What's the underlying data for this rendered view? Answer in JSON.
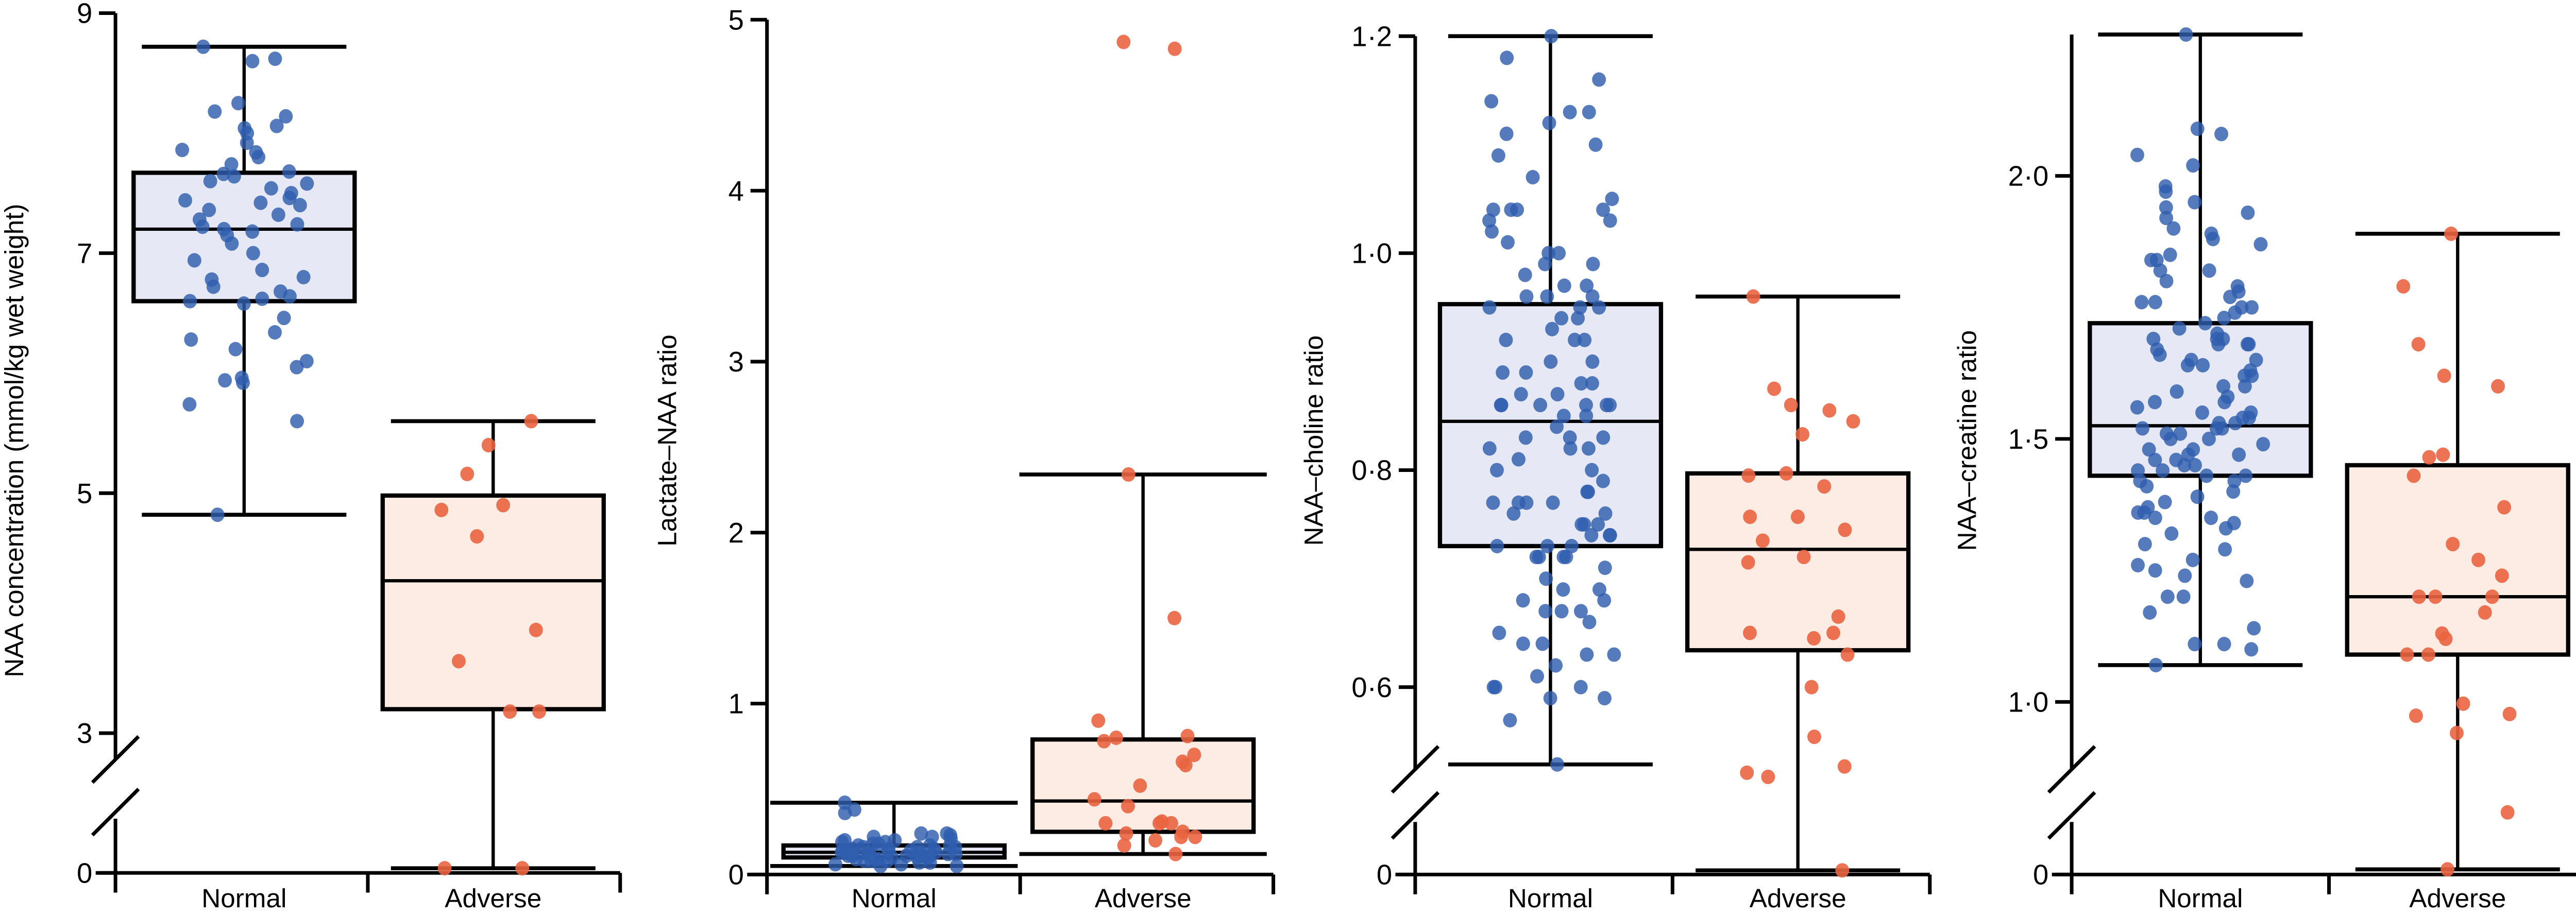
{
  "colors": {
    "normal_dot": "#2f5eae",
    "normal_fill": "#e6e8f5",
    "adverse_dot": "#ea6440",
    "adverse_fill": "#fdece4",
    "line": "#000000"
  },
  "chart_data": [
    {
      "type": "box",
      "ylabel": "NAA concentration (mmol/kg wet weight)",
      "categories": [
        "Normal",
        "Adverse"
      ],
      "yticks": [
        {
          "value": 0,
          "label": "0"
        },
        {
          "value": 3,
          "label": "3"
        },
        {
          "value": 5,
          "label": "5"
        },
        {
          "value": 7,
          "label": "7"
        },
        {
          "value": 9,
          "label": "9"
        }
      ],
      "axis_break": {
        "between": [
          0,
          3
        ]
      },
      "ylim": [
        0,
        9
      ],
      "groups": [
        {
          "name": "Normal",
          "whisker_low": 4.82,
          "q1": 6.6,
          "median": 7.2,
          "q3": 7.67,
          "whisker_high": 8.72,
          "points": [
            8.72,
            8.62,
            8.6,
            8.25,
            8.18,
            8.14,
            8.06,
            8.04,
            8.0,
            7.92,
            7.86,
            7.84,
            7.8,
            7.74,
            7.68,
            7.66,
            7.64,
            7.6,
            7.58,
            7.54,
            7.5,
            7.46,
            7.44,
            7.42,
            7.4,
            7.36,
            7.32,
            7.28,
            7.24,
            7.22,
            7.2,
            7.18,
            7.15,
            7.08,
            7.0,
            6.94,
            6.86,
            6.8,
            6.78,
            6.72,
            6.68,
            6.64,
            6.62,
            6.6,
            6.58,
            6.46,
            6.34,
            6.28,
            6.2,
            6.1,
            6.05,
            5.96,
            5.94,
            5.92,
            5.74,
            5.6,
            4.82
          ]
        },
        {
          "name": "Adverse",
          "whisker_low": 0.1,
          "q1": 3.2,
          "median": 4.27,
          "q3": 4.98,
          "whisker_high": 5.6,
          "points": [
            5.6,
            5.4,
            5.16,
            4.9,
            4.86,
            4.64,
            3.86,
            3.6,
            3.18,
            3.18,
            0.1,
            0.1
          ]
        }
      ]
    },
    {
      "type": "box",
      "ylabel": "Lactate–NAA ratio",
      "categories": [
        "Normal",
        "Adverse"
      ],
      "yticks": [
        {
          "value": 0,
          "label": "0"
        },
        {
          "value": 1,
          "label": "1"
        },
        {
          "value": 2,
          "label": "2"
        },
        {
          "value": 3,
          "label": "3"
        },
        {
          "value": 4,
          "label": "4"
        },
        {
          "value": 5,
          "label": "5"
        }
      ],
      "ylim": [
        0,
        5
      ],
      "groups": [
        {
          "name": "Normal",
          "whisker_low": 0.05,
          "q1": 0.1,
          "median": 0.13,
          "q3": 0.17,
          "whisker_high": 0.42,
          "points": [
            0.42,
            0.38,
            0.36,
            0.24,
            0.24,
            0.23,
            0.22,
            0.22,
            0.21,
            0.2,
            0.2,
            0.19,
            0.19,
            0.18,
            0.18,
            0.17,
            0.17,
            0.17,
            0.16,
            0.16,
            0.16,
            0.15,
            0.15,
            0.15,
            0.14,
            0.14,
            0.14,
            0.14,
            0.13,
            0.13,
            0.13,
            0.13,
            0.12,
            0.12,
            0.12,
            0.12,
            0.11,
            0.11,
            0.11,
            0.11,
            0.1,
            0.1,
            0.1,
            0.1,
            0.09,
            0.09,
            0.09,
            0.08,
            0.08,
            0.08,
            0.07,
            0.07,
            0.06,
            0.06,
            0.05,
            0.05
          ]
        },
        {
          "name": "Adverse",
          "whisker_low": 0.12,
          "q1": 0.25,
          "median": 0.43,
          "q3": 0.79,
          "whisker_high": 2.34,
          "points": [
            4.87,
            4.83,
            2.34,
            1.5,
            0.9,
            0.81,
            0.8,
            0.78,
            0.7,
            0.66,
            0.64,
            0.52,
            0.44,
            0.4,
            0.31,
            0.3,
            0.3,
            0.3,
            0.25,
            0.24,
            0.22,
            0.22,
            0.2,
            0.17,
            0.12
          ]
        }
      ]
    },
    {
      "type": "box",
      "ylabel": "NAA–choline ratio",
      "categories": [
        "Normal",
        "Adverse"
      ],
      "yticks": [
        {
          "value": 0,
          "label": "0"
        },
        {
          "value": 0.6,
          "label": "0·6"
        },
        {
          "value": 0.8,
          "label": "0·8"
        },
        {
          "value": 1.0,
          "label": "1·0"
        },
        {
          "value": 1.2,
          "label": "1·2"
        }
      ],
      "axis_break": {
        "between": [
          0,
          0.6
        ]
      },
      "ylim": [
        0,
        1.2
      ],
      "groups": [
        {
          "name": "Normal",
          "whisker_low": 0.53,
          "q1": 0.73,
          "median": 0.845,
          "q3": 0.953,
          "whisker_high": 1.2,
          "points": [
            1.2,
            1.18,
            1.16,
            1.14,
            1.13,
            1.13,
            1.12,
            1.11,
            1.1,
            1.09,
            1.07,
            1.05,
            1.04,
            1.04,
            1.04,
            1.04,
            1.03,
            1.03,
            1.02,
            1.01,
            1.0,
            1.0,
            0.99,
            0.99,
            0.98,
            0.97,
            0.97,
            0.96,
            0.96,
            0.96,
            0.95,
            0.95,
            0.95,
            0.94,
            0.94,
            0.93,
            0.92,
            0.92,
            0.92,
            0.9,
            0.9,
            0.89,
            0.89,
            0.88,
            0.88,
            0.87,
            0.87,
            0.86,
            0.86,
            0.86,
            0.86,
            0.86,
            0.86,
            0.85,
            0.85,
            0.84,
            0.83,
            0.83,
            0.83,
            0.82,
            0.82,
            0.82,
            0.81,
            0.8,
            0.8,
            0.79,
            0.78,
            0.78,
            0.77,
            0.77,
            0.77,
            0.77,
            0.76,
            0.76,
            0.75,
            0.75,
            0.75,
            0.74,
            0.74,
            0.74,
            0.73,
            0.73,
            0.73,
            0.72,
            0.72,
            0.72,
            0.72,
            0.71,
            0.7,
            0.69,
            0.69,
            0.68,
            0.68,
            0.67,
            0.67,
            0.67,
            0.66,
            0.65,
            0.64,
            0.64,
            0.63,
            0.63,
            0.62,
            0.61,
            0.6,
            0.6,
            0.6,
            0.59,
            0.59,
            0.57,
            0.53
          ]
        },
        {
          "name": "Adverse",
          "whisker_low": 0.02,
          "q1": 0.634,
          "median": 0.727,
          "q3": 0.797,
          "whisker_high": 0.96,
          "points": [
            0.96,
            0.875,
            0.86,
            0.855,
            0.845,
            0.833,
            0.797,
            0.795,
            0.785,
            0.757,
            0.757,
            0.745,
            0.735,
            0.72,
            0.715,
            0.665,
            0.65,
            0.65,
            0.645,
            0.63,
            0.6,
            0.555,
            0.52,
            0.49,
            0.47,
            0.02
          ]
        }
      ]
    },
    {
      "type": "box",
      "ylabel": "NAA–creatine ratio",
      "categories": [
        "Normal",
        "Adverse"
      ],
      "yticks": [
        {
          "value": 0,
          "label": "0"
        },
        {
          "value": 1.0,
          "label": "1·0"
        },
        {
          "value": 1.5,
          "label": "1·5"
        },
        {
          "value": 2.0,
          "label": "2·0"
        }
      ],
      "axis_break": {
        "between": [
          0,
          1.0
        ]
      },
      "ylim": [
        0,
        2.27
      ],
      "groups": [
        {
          "name": "Normal",
          "whisker_low": 1.07,
          "q1": 1.43,
          "median": 1.525,
          "q3": 1.72,
          "whisker_high": 2.27,
          "points": [
            2.27,
            2.09,
            2.08,
            2.04,
            2.02,
            1.98,
            1.97,
            1.95,
            1.94,
            1.93,
            1.92,
            1.9,
            1.89,
            1.88,
            1.87,
            1.85,
            1.84,
            1.84,
            1.82,
            1.82,
            1.8,
            1.79,
            1.78,
            1.77,
            1.76,
            1.76,
            1.75,
            1.75,
            1.74,
            1.73,
            1.72,
            1.71,
            1.7,
            1.69,
            1.69,
            1.69,
            1.68,
            1.68,
            1.68,
            1.67,
            1.66,
            1.65,
            1.65,
            1.64,
            1.64,
            1.63,
            1.62,
            1.62,
            1.6,
            1.6,
            1.59,
            1.58,
            1.57,
            1.57,
            1.56,
            1.55,
            1.55,
            1.54,
            1.54,
            1.53,
            1.53,
            1.52,
            1.52,
            1.52,
            1.51,
            1.51,
            1.5,
            1.5,
            1.49,
            1.48,
            1.48,
            1.47,
            1.47,
            1.46,
            1.46,
            1.45,
            1.45,
            1.44,
            1.44,
            1.43,
            1.43,
            1.42,
            1.42,
            1.41,
            1.4,
            1.39,
            1.38,
            1.37,
            1.36,
            1.36,
            1.35,
            1.35,
            1.34,
            1.33,
            1.32,
            1.3,
            1.29,
            1.27,
            1.26,
            1.25,
            1.24,
            1.23,
            1.2,
            1.2,
            1.17,
            1.14,
            1.11,
            1.11,
            1.1,
            1.07
          ]
        },
        {
          "name": "Adverse",
          "whisker_low": 0.03,
          "q1": 1.09,
          "median": 1.2,
          "q3": 1.45,
          "whisker_high": 1.89,
          "points": [
            1.89,
            1.79,
            1.68,
            1.62,
            1.6,
            1.47,
            1.465,
            1.43,
            1.37,
            1.3,
            1.27,
            1.24,
            1.2,
            1.2,
            1.2,
            1.17,
            1.13,
            1.12,
            1.09,
            1.09,
            0.99,
            0.93,
            0.92,
            0.82,
            0.36,
            0.03
          ]
        }
      ]
    }
  ]
}
